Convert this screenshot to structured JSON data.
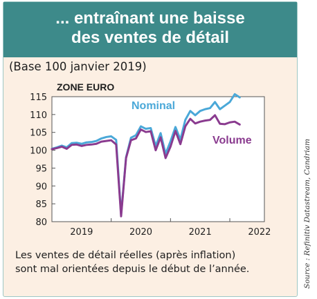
{
  "header": {
    "line1": "... entraînant une baisse",
    "line2": "des ventes de détail"
  },
  "subtitle": "(Base 100 janvier 2019)",
  "caption": {
    "line1": "Les ventes de détail réelles (après inflation)",
    "line2": "sont mal orientées depuis le début de l’année."
  },
  "source": "Source : Refinitiv Datastream, Candriam",
  "colors": {
    "header_bg": "#3d8a8a",
    "card_bg": "#fcefe3",
    "plot_bg": "#ffffff",
    "nominal": "#4aa8d8",
    "volume": "#8a3b8f",
    "axis": "#555555",
    "grid": "#d9d9d9"
  },
  "chart_data": {
    "type": "line",
    "title": "ZONE EURO",
    "xlabel": "",
    "ylabel": "",
    "x_ticks": [
      "2019",
      "2020",
      "2021",
      "2022"
    ],
    "xlim": [
      "2019-01",
      "2022-08"
    ],
    "ylim": [
      80,
      115
    ],
    "y_ticks": [
      80,
      85,
      90,
      95,
      100,
      105,
      110,
      115
    ],
    "grid": false,
    "x": [
      "2019-01",
      "2019-02",
      "2019-03",
      "2019-04",
      "2019-05",
      "2019-06",
      "2019-07",
      "2019-08",
      "2019-09",
      "2019-10",
      "2019-11",
      "2019-12",
      "2020-01",
      "2020-02",
      "2020-03",
      "2020-04",
      "2020-05",
      "2020-06",
      "2020-07",
      "2020-08",
      "2020-09",
      "2020-10",
      "2020-11",
      "2020-12",
      "2021-01",
      "2021-02",
      "2021-03",
      "2021-04",
      "2021-05",
      "2021-06",
      "2021-07",
      "2021-08",
      "2021-09",
      "2021-10",
      "2021-11",
      "2021-12",
      "2022-01",
      "2022-02",
      "2022-03",
      "2022-04",
      "2022-05",
      "2022-06",
      "2022-07"
    ],
    "series": [
      {
        "name": "Nominal",
        "values": [
          100.4,
          100.8,
          101.3,
          100.8,
          102.0,
          102.1,
          101.8,
          102.2,
          102.3,
          102.6,
          103.3,
          103.7,
          103.9,
          102.9,
          82.0,
          98.0,
          103.5,
          104.2,
          106.7,
          106.0,
          106.2,
          101.2,
          104.8,
          99.0,
          102.5,
          106.5,
          103.0,
          108.5,
          111.0,
          109.8,
          111.0,
          111.5,
          111.8,
          113.5,
          111.5,
          112.5,
          113.5,
          115.7,
          114.8,
          null,
          null,
          null,
          null
        ]
      },
      {
        "name": "Volume",
        "values": [
          100.3,
          100.6,
          101.0,
          100.4,
          101.5,
          101.6,
          101.2,
          101.5,
          101.6,
          101.8,
          102.4,
          102.6,
          102.8,
          101.6,
          81.5,
          97.8,
          102.8,
          103.3,
          105.8,
          105.1,
          105.3,
          100.0,
          103.6,
          97.8,
          101.0,
          105.4,
          101.7,
          106.7,
          108.8,
          107.5,
          108.0,
          108.3,
          108.5,
          109.8,
          107.4,
          107.3,
          107.8,
          108.0,
          107.2,
          null,
          null,
          null,
          null
        ]
      }
    ]
  }
}
